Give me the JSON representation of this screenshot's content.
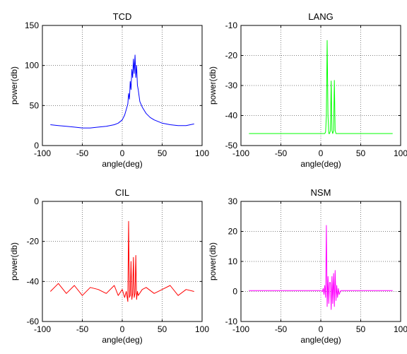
{
  "chart_data": [
    {
      "type": "line",
      "title": "TCD",
      "xlabel": "angle(deg)",
      "ylabel": "power(db)",
      "xlim": [
        -100,
        100
      ],
      "ylim": [
        0,
        150
      ],
      "xticks": [
        -100,
        -50,
        0,
        50,
        100
      ],
      "yticks": [
        0,
        50,
        100,
        150
      ],
      "grid": true,
      "color": "#0000ff",
      "series": [
        {
          "x": [
            -90,
            -80,
            -70,
            -60,
            -50,
            -40,
            -30,
            -20,
            -10,
            -5,
            0,
            3,
            5,
            7,
            8,
            9,
            10,
            11,
            12,
            13,
            14,
            15,
            16,
            17,
            18,
            19,
            20,
            22,
            25,
            30,
            35,
            40,
            50,
            60,
            70,
            80,
            90
          ],
          "values": [
            26,
            25,
            24,
            23,
            22,
            22,
            23,
            24,
            26,
            28,
            32,
            38,
            45,
            52,
            65,
            58,
            80,
            70,
            95,
            85,
            108,
            90,
            113,
            85,
            100,
            75,
            70,
            55,
            48,
            40,
            35,
            32,
            28,
            26,
            25,
            25,
            27
          ]
        }
      ]
    },
    {
      "type": "line",
      "title": "LANG",
      "xlabel": "angle(deg)",
      "ylabel": "power(db)",
      "xlim": [
        -100,
        100
      ],
      "ylim": [
        -50,
        -10
      ],
      "xticks": [
        -100,
        -50,
        0,
        50,
        100
      ],
      "yticks": [
        -50,
        -40,
        -30,
        -20,
        -10
      ],
      "grid": true,
      "color": "#00ff00",
      "series": [
        {
          "x": [
            -90,
            5,
            6,
            7,
            8,
            9,
            10,
            11,
            12,
            13,
            14,
            15,
            16,
            17,
            18,
            19,
            20,
            90
          ],
          "values": [
            -46,
            -46,
            -45.5,
            -40,
            -15,
            -40,
            -46,
            -46,
            -45,
            -28.5,
            -45,
            -46,
            -45,
            -28.3,
            -45,
            -46,
            -46,
            -46
          ]
        }
      ]
    },
    {
      "type": "line",
      "title": "CIL",
      "xlabel": "angle(deg)",
      "ylabel": "power(db)",
      "xlim": [
        -100,
        100
      ],
      "ylim": [
        -60,
        0
      ],
      "xticks": [
        -100,
        -50,
        0,
        50,
        100
      ],
      "yticks": [
        -60,
        -40,
        -20,
        0
      ],
      "grid": true,
      "color": "#ff0000",
      "series": [
        {
          "x": [
            -90,
            -80,
            -70,
            -60,
            -50,
            -40,
            -30,
            -20,
            -10,
            -5,
            0,
            3,
            5,
            7,
            8,
            9,
            10,
            11,
            12,
            13,
            14,
            15,
            16,
            17,
            18,
            19,
            20,
            25,
            30,
            40,
            50,
            60,
            70,
            80,
            90
          ],
          "values": [
            -45,
            -41,
            -46,
            -42,
            -47,
            -43,
            -44,
            -46,
            -42,
            -47,
            -44,
            -48,
            -45,
            -50,
            -10,
            -48,
            -47,
            -30,
            -49,
            -46,
            -28,
            -48,
            -46,
            -27,
            -49,
            -45,
            -47,
            -44,
            -43,
            -46,
            -44,
            -42,
            -47,
            -44,
            -45
          ]
        }
      ]
    },
    {
      "type": "line",
      "title": "NSM",
      "xlabel": "angle(deg)",
      "ylabel": "power(db)",
      "xlim": [
        -100,
        100
      ],
      "ylim": [
        -10,
        30
      ],
      "xticks": [
        -100,
        -50,
        0,
        50,
        100
      ],
      "yticks": [
        -10,
        0,
        10,
        20,
        30
      ],
      "grid": true,
      "color": "#ff00ff",
      "series": [
        {
          "x": [
            -90,
            0,
            2,
            3,
            4,
            5,
            6,
            7,
            8,
            9,
            10,
            11,
            12,
            13,
            14,
            15,
            16,
            17,
            18,
            19,
            20,
            21,
            22,
            23,
            25,
            90
          ],
          "values": [
            0.3,
            0.3,
            0,
            1,
            -1,
            2,
            -2,
            22,
            -5,
            5,
            -4,
            3,
            3,
            -6,
            5,
            -4,
            6,
            -5,
            7,
            -3,
            2,
            -2,
            1,
            -1,
            0.3,
            0.3
          ]
        }
      ]
    }
  ]
}
